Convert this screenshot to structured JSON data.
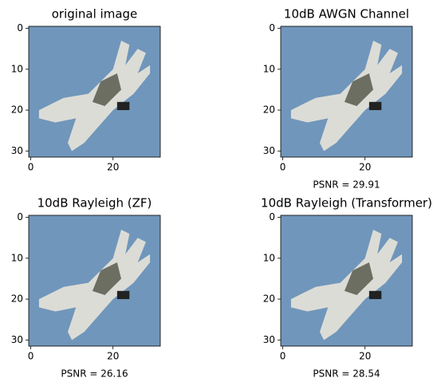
{
  "chart_data": [
    {
      "type": "image",
      "title": "original image",
      "xlim": [
        -0.5,
        31.5
      ],
      "ylim": [
        31.5,
        -0.5
      ],
      "xticks": [
        0,
        20
      ],
      "yticks": [
        0,
        10,
        20,
        30
      ]
    },
    {
      "type": "image",
      "title": "10dB AWGN Channel",
      "xlabel": "PSNR = 29.91",
      "xlim": [
        -0.5,
        31.5
      ],
      "ylim": [
        31.5,
        -0.5
      ],
      "xticks": [
        0,
        20
      ],
      "yticks": [
        0,
        10,
        20,
        30
      ]
    },
    {
      "type": "image",
      "title": "10dB Rayleigh (ZF)",
      "xlabel": "PSNR = 26.16",
      "xlim": [
        -0.5,
        31.5
      ],
      "ylim": [
        31.5,
        -0.5
      ],
      "xticks": [
        0,
        20
      ],
      "yticks": [
        0,
        10,
        20,
        30
      ]
    },
    {
      "type": "image",
      "title": "10dB Rayleigh (Transformer)",
      "xlabel": "PSNR = 28.54",
      "xlim": [
        -0.5,
        31.5
      ],
      "ylim": [
        31.5,
        -0.5
      ],
      "xticks": [
        0,
        20
      ],
      "yticks": [
        0,
        10,
        20,
        30
      ]
    }
  ]
}
